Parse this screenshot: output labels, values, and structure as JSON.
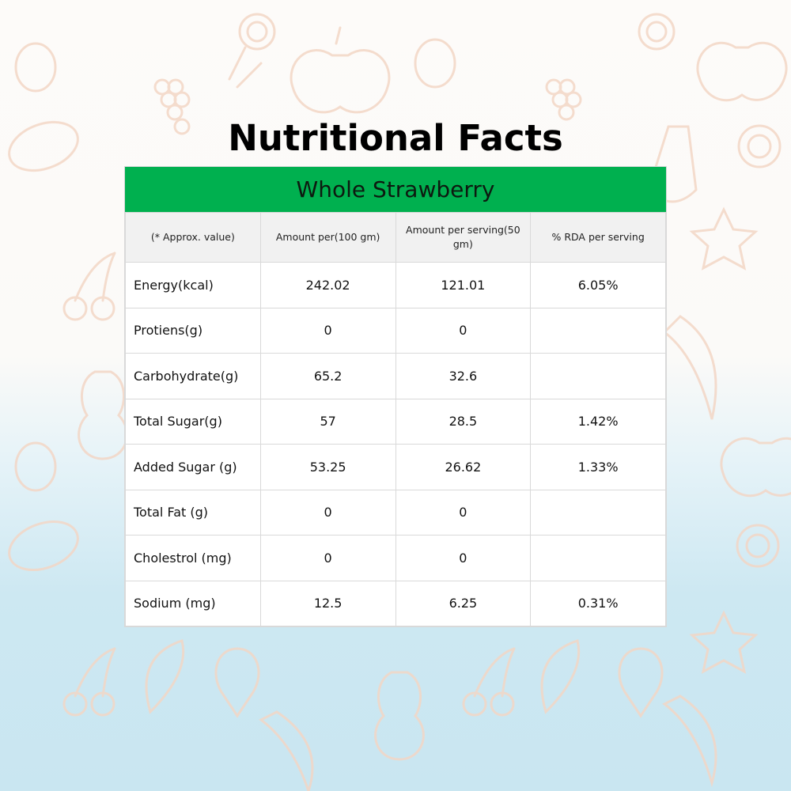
{
  "title": "Nutritional Facts",
  "banner": "Whole Strawberry",
  "colors": {
    "banner": "#00b04f",
    "header_bg": "#f1f1f1"
  },
  "table": {
    "headers": [
      "(* Approx. value)",
      "Amount per(100 gm)",
      "Amount per serving(50 gm)",
      "% RDA per serving"
    ],
    "rows": [
      [
        "Energy(kcal)",
        "242.02",
        "121.01",
        "6.05%"
      ],
      [
        "Protiens(g)",
        "0",
        "0",
        ""
      ],
      [
        "Carbohydrate(g)",
        "65.2",
        "32.6",
        ""
      ],
      [
        "Total Sugar(g)",
        "57",
        "28.5",
        "1.42%"
      ],
      [
        "Added Sugar (g)",
        "53.25",
        "26.62",
        "1.33%"
      ],
      [
        "Total Fat (g)",
        "0",
        "0",
        ""
      ],
      [
        "Cholestrol (mg)",
        "0",
        "0",
        ""
      ],
      [
        "Sodium (mg)",
        "12.5",
        "6.25",
        "0.31%"
      ]
    ]
  }
}
